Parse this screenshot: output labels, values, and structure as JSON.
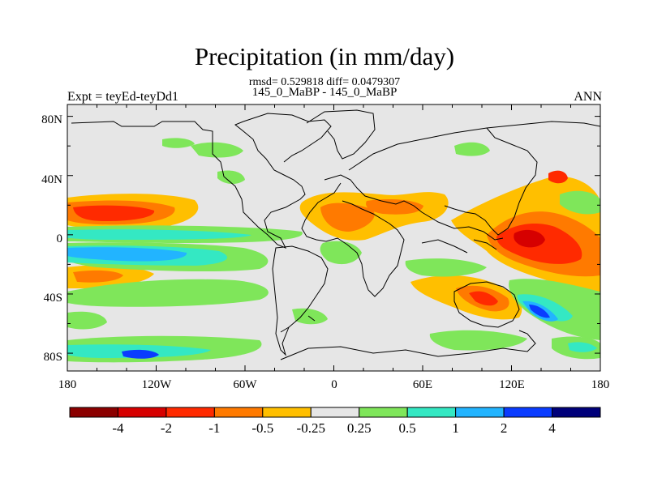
{
  "title": "Precipitation (in mm/day)",
  "stats": "rmsd= 0.529818 diff= 0.0479307",
  "subtitle": "145_0_MaBP - 145_0_MaBP",
  "experiment": "Expt = teyEd-teyDd1",
  "season": "ANN",
  "map": {
    "type": "contour-map",
    "projection": "cylindrical equidistant",
    "x_ticks": [
      "180",
      "120W",
      "60W",
      "0",
      "60E",
      "120E",
      "180"
    ],
    "y_ticks": [
      "80N",
      "40N",
      "0",
      "40S",
      "80S"
    ]
  },
  "colorbar": {
    "labels": [
      "-4",
      "-2",
      "-1",
      "-0.5",
      "-0.25",
      "0.25",
      "0.5",
      "1",
      "2",
      "4"
    ],
    "colors": [
      "#8b0000",
      "#d60000",
      "#ff2a00",
      "#ff7a00",
      "#ffbf00",
      "#e6e6e6",
      "#7fe65a",
      "#34e8c3",
      "#22b4ff",
      "#0a3cff",
      "#00007a"
    ]
  }
}
